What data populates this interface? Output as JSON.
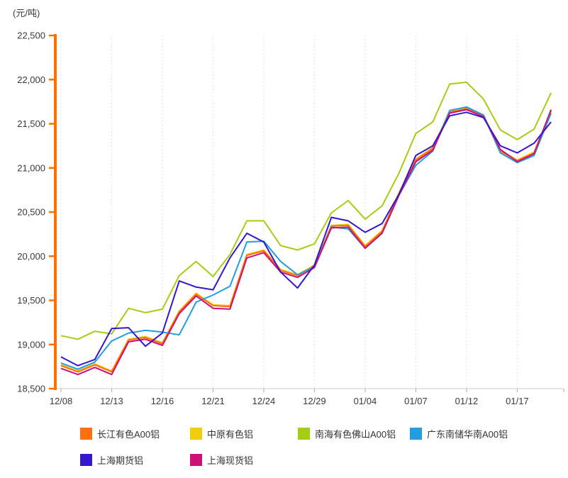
{
  "unit_label": "(元/吨)",
  "y_axis": {
    "tick_labels": [
      "22,500",
      "22,000",
      "21,500",
      "21,000",
      "20,500",
      "20,000",
      "19,500",
      "19,000",
      "18,500"
    ],
    "min": 18500,
    "max": 22500,
    "step": 500
  },
  "x_axis": {
    "tick_labels": [
      "12/08",
      "12/13",
      "12/16",
      "12/21",
      "12/24",
      "12/29",
      "01/04",
      "01/07",
      "01/12",
      "01/17"
    ],
    "tick_label_indices": [
      0,
      3,
      6,
      9,
      12,
      15,
      18,
      21,
      24,
      27
    ],
    "point_count": 30
  },
  "chart_data": {
    "type": "line",
    "title": "",
    "ylabel": "(元/吨)",
    "ylim": [
      18500,
      22500
    ],
    "grid": "vertical-dashed",
    "legend_position": "bottom",
    "x_tick_labels": [
      "12/08",
      "12/13",
      "12/16",
      "12/21",
      "12/24",
      "12/29",
      "01/04",
      "01/07",
      "01/12",
      "01/17"
    ],
    "x_tick_label_indices": [
      0,
      3,
      6,
      9,
      12,
      15,
      18,
      21,
      24,
      27
    ],
    "series": [
      {
        "name": "长江有色A00铝",
        "color": "#FF6E0F",
        "values": [
          18760,
          18690,
          18770,
          18690,
          19050,
          19080,
          19010,
          19370,
          19570,
          19440,
          19430,
          20010,
          20060,
          19840,
          19780,
          19890,
          20340,
          20350,
          20110,
          20280,
          20710,
          21090,
          21220,
          21630,
          21670,
          21590,
          21190,
          21080,
          21170,
          21650
        ]
      },
      {
        "name": "中原有色铝",
        "color": "#F3CC0E",
        "values": [
          18770,
          18700,
          18780,
          18700,
          19060,
          19090,
          19020,
          19380,
          19580,
          19450,
          19440,
          20020,
          20070,
          19850,
          19790,
          19900,
          20350,
          20360,
          20120,
          20290,
          20720,
          21100,
          21230,
          21640,
          21680,
          21600,
          21200,
          21090,
          21180,
          21640
        ]
      },
      {
        "name": "南海有色佛山A00铝",
        "color": "#A5CE13",
        "values": [
          19100,
          19060,
          19150,
          19120,
          19410,
          19360,
          19400,
          19780,
          19940,
          19770,
          20020,
          20400,
          20400,
          20120,
          20070,
          20140,
          20490,
          20630,
          20420,
          20570,
          20940,
          21390,
          21520,
          21950,
          21970,
          21780,
          21430,
          21320,
          21440,
          21850
        ]
      },
      {
        "name": "广东南储华南A00铝",
        "color": "#239EDC",
        "values": [
          18790,
          18720,
          18800,
          19040,
          19130,
          19160,
          19140,
          19110,
          19480,
          19560,
          19660,
          20160,
          20170,
          19940,
          19790,
          19880,
          20330,
          20310,
          20090,
          20260,
          20690,
          21030,
          21190,
          21650,
          21690,
          21600,
          21170,
          21060,
          21140,
          21620
        ]
      },
      {
        "name": "上海期货铝",
        "color": "#3417CE",
        "values": [
          18860,
          18760,
          18830,
          19180,
          19190,
          18980,
          19130,
          19720,
          19650,
          19620,
          19980,
          20260,
          20160,
          19820,
          19640,
          19900,
          20440,
          20400,
          20270,
          20370,
          20700,
          21140,
          21250,
          21590,
          21630,
          21570,
          21250,
          21170,
          21280,
          21520
        ]
      },
      {
        "name": "上海现货铝",
        "color": "#CE1176",
        "values": [
          18730,
          18660,
          18740,
          18660,
          19030,
          19060,
          18990,
          19350,
          19550,
          19410,
          19400,
          19980,
          20040,
          19820,
          19760,
          19870,
          20320,
          20330,
          20090,
          20260,
          20690,
          21070,
          21200,
          21620,
          21660,
          21580,
          21210,
          21070,
          21160,
          21660
        ]
      }
    ]
  },
  "legend": {
    "items": [
      {
        "label": "长江有色A00铝",
        "color": "#FF6E0F"
      },
      {
        "label": "中原有色铝",
        "color": "#F3CC0E"
      },
      {
        "label": "南海有色佛山A00铝",
        "color": "#A5CE13"
      },
      {
        "label": "广东南储华南A00铝",
        "color": "#239EDC"
      },
      {
        "label": "上海期货铝",
        "color": "#3417CE"
      },
      {
        "label": "上海现货铝",
        "color": "#CE1176"
      }
    ]
  },
  "style": {
    "axis_color": "#FF7000",
    "grid_color": "#e0e0e0",
    "baseline_color": "#cccccc",
    "tick_text_color": "#3a3a3a"
  }
}
